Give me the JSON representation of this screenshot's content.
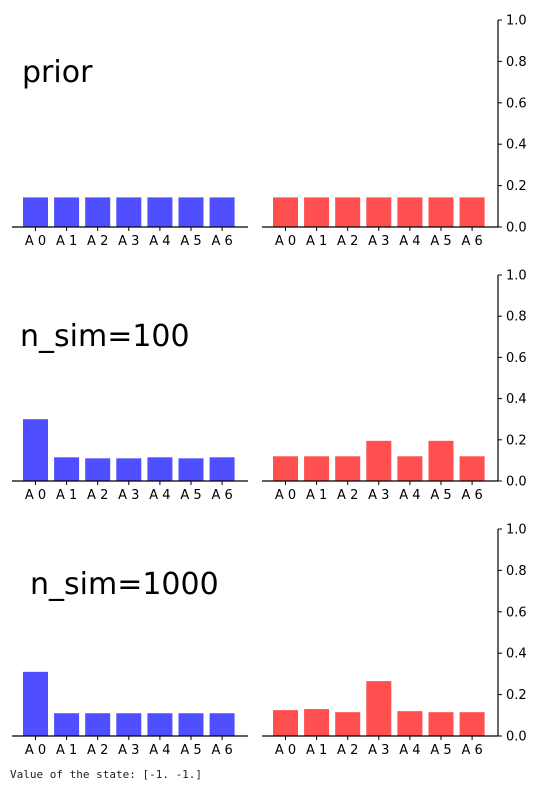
{
  "caption": "Value of the state: [-1. -1.]",
  "colors": {
    "left": "#4b4bff",
    "right": "#ff4b4b",
    "axis": "#000000"
  },
  "chart_data": [
    {
      "type": "bar",
      "title": "prior",
      "categories": [
        "A 0",
        "A 1",
        "A 2",
        "A 3",
        "A 4",
        "A 5",
        "A 6"
      ],
      "series": [
        {
          "values": [
            0.143,
            0.143,
            0.143,
            0.143,
            0.143,
            0.143,
            0.143
          ]
        },
        {
          "values": [
            0.143,
            0.143,
            0.143,
            0.143,
            0.143,
            0.143,
            0.143
          ]
        }
      ],
      "ylim": [
        0,
        1.0
      ],
      "yticks": [
        "0.0",
        "0.2",
        "0.4",
        "0.6",
        "0.8",
        "1.0"
      ]
    },
    {
      "type": "bar",
      "title": "n_sim=100",
      "categories": [
        "A 0",
        "A 1",
        "A 2",
        "A 3",
        "A 4",
        "A 5",
        "A 6"
      ],
      "series": [
        {
          "values": [
            0.3,
            0.115,
            0.11,
            0.11,
            0.115,
            0.11,
            0.115
          ]
        },
        {
          "values": [
            0.12,
            0.12,
            0.12,
            0.195,
            0.12,
            0.195,
            0.12
          ]
        }
      ],
      "ylim": [
        0,
        1.0
      ],
      "yticks": [
        "0.0",
        "0.2",
        "0.4",
        "0.6",
        "0.8",
        "1.0"
      ]
    },
    {
      "type": "bar",
      "title": "n_sim=1000",
      "categories": [
        "A 0",
        "A 1",
        "A 2",
        "A 3",
        "A 4",
        "A 5",
        "A 6"
      ],
      "series": [
        {
          "values": [
            0.31,
            0.11,
            0.11,
            0.11,
            0.11,
            0.11,
            0.11
          ]
        },
        {
          "values": [
            0.125,
            0.13,
            0.115,
            0.265,
            0.12,
            0.115,
            0.115
          ]
        }
      ],
      "ylim": [
        0,
        1.0
      ],
      "yticks": [
        "0.0",
        "0.2",
        "0.4",
        "0.6",
        "0.8",
        "1.0"
      ]
    }
  ]
}
